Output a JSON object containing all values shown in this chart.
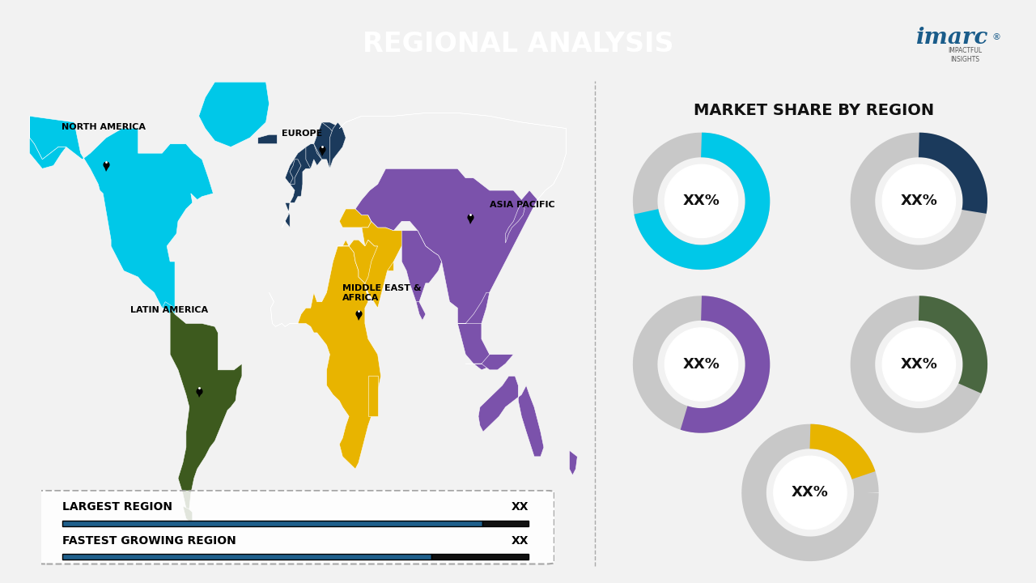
{
  "title": "REGIONAL ANALYSIS",
  "right_title": "MARKET SHARE BY REGION",
  "bg_color": "#f2f2f2",
  "right_bg": "#e8e8e8",
  "title_bg": "#1a5276",
  "regions": [
    {
      "name": "NORTH AMERICA",
      "color": "#00c8e8"
    },
    {
      "name": "EUROPE",
      "color": "#1b3a5c"
    },
    {
      "name": "ASIA PACIFIC",
      "color": "#7b52ab"
    },
    {
      "name": "MIDDLE EAST & AFRICA",
      "color": "#e8b400"
    },
    {
      "name": "LATIN AMERICA",
      "color": "#3d5a1e"
    }
  ],
  "donuts": [
    {
      "color": "#00c8e8",
      "value": 0.72,
      "label": "XX%"
    },
    {
      "color": "#1b3a5c",
      "value": 0.28,
      "label": "XX%"
    },
    {
      "color": "#7b52ab",
      "value": 0.55,
      "label": "XX%"
    },
    {
      "color": "#4a6741",
      "value": 0.32,
      "label": "XX%"
    },
    {
      "color": "#e8b400",
      "value": 0.2,
      "label": "XX%"
    }
  ],
  "donut_gray": "#c8c8c8",
  "legend_largest": "LARGEST REGION",
  "legend_fastest": "FASTEST GROWING REGION",
  "legend_value": "XX",
  "bar_color_main": "#1f5f8b",
  "bar_color_end": "#111111"
}
